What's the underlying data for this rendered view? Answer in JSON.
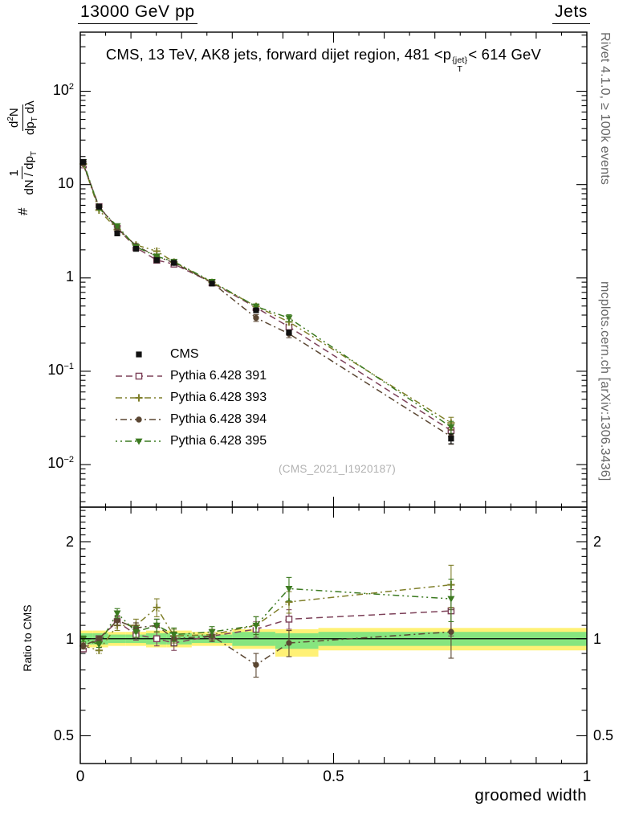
{
  "header": {
    "left": "13000 GeV pp",
    "right": "Jets"
  },
  "title": {
    "prefix": "CMS, 13 TeV, AK8 jets, forward dijet region, 481 <p",
    "pt_sup": "{jet}",
    "pt_sub": "T",
    "suffix": "< 614 GeV"
  },
  "right_margin": {
    "rivet": "Rivet 4.1.0, ≥ 100k events",
    "mcplots": "mcplots.cern.ch [arXiv:1306.3436]"
  },
  "main_panel": {
    "watermark": "(CMS_2021_I1920187)",
    "ylabel": {
      "prefix": "#",
      "frac1_num": "1",
      "frac1_den_main": "dN / dp",
      "frac1_den_sub": "T",
      "frac2_num_main": "d",
      "frac2_num_sup": "2",
      "frac2_num_tail": "N",
      "frac2_den_main": "dp",
      "frac2_den_sub": "T",
      "frac2_den_tail": " dλ"
    }
  },
  "ratio_panel": {
    "ylabel": "Ratio to CMS"
  },
  "x_axis": {
    "label": "groomed width"
  },
  "chart_data": {
    "type": "line",
    "title": "CMS, 13 TeV, AK8 jets, forward dijet region, 481 < pT(jet) < 614 GeV",
    "xlabel": "groomed width",
    "ylabel_main": "1/(dN/dpT) d2N/(dpT dλ)",
    "ylabel_ratio": "Ratio to CMS",
    "x_lim": [
      0,
      1
    ],
    "y_scale": "log",
    "y_lim_main": [
      0.0035,
      430
    ],
    "y_lim_ratio": [
      0.41,
      2.56
    ],
    "x_ticks_labeled": [
      0,
      0.5,
      1
    ],
    "x_tick_labels": [
      "0",
      "0.5",
      "1"
    ],
    "y_ticks_main": [
      {
        "v": 100,
        "base": "10",
        "exp": "2"
      },
      {
        "v": 10,
        "base": "10",
        "exp": ""
      },
      {
        "v": 1,
        "base": "1",
        "exp": ""
      },
      {
        "v": 0.1,
        "base": "10",
        "exp": "−1"
      },
      {
        "v": 0.01,
        "base": "10",
        "exp": "−2"
      }
    ],
    "y_ticks_ratio": [
      {
        "v": 2,
        "label": "2"
      },
      {
        "v": 1,
        "label": "1"
      },
      {
        "v": 0.5,
        "label": "0.5"
      }
    ],
    "x": [
      0.006,
      0.037,
      0.073,
      0.11,
      0.151,
      0.185,
      0.26,
      0.347,
      0.412,
      0.732
    ],
    "cms": {
      "name": "CMS",
      "color": "#111111",
      "marker": "square-filled",
      "values": [
        17.5,
        5.8,
        3.0,
        2.05,
        1.55,
        1.45,
        0.87,
        0.45,
        0.26,
        0.019
      ],
      "err_rel": [
        0.02,
        0.02,
        0.02,
        0.03,
        0.03,
        0.03,
        0.03,
        0.05,
        0.06,
        0.12
      ]
    },
    "models": [
      {
        "name": "Pythia 6.428 391",
        "color": "#7d4159",
        "marker": "square-open",
        "dash": "8 5",
        "ratio": [
          0.93,
          1.0,
          1.13,
          1.03,
          1.0,
          0.97,
          1.02,
          1.07,
          1.15,
          1.22
        ],
        "err": [
          0.02,
          0.02,
          0.04,
          0.04,
          0.05,
          0.05,
          0.04,
          0.06,
          0.08,
          0.2
        ]
      },
      {
        "name": "Pythia 6.428 393",
        "color": "#7f7f2a",
        "marker": "cross-open",
        "dash": "8 4 2 4",
        "ratio": [
          0.95,
          0.92,
          1.1,
          1.1,
          1.25,
          1.02,
          1.03,
          1.1,
          1.3,
          1.47
        ],
        "err": [
          0.02,
          0.02,
          0.04,
          0.05,
          0.08,
          0.05,
          0.04,
          0.07,
          0.1,
          0.22
        ]
      },
      {
        "name": "Pythia 6.428 394",
        "color": "#5a4632",
        "marker": "circle-filled",
        "dash": "2 4 8 4",
        "ratio": [
          0.95,
          1.0,
          1.14,
          1.08,
          1.1,
          1.0,
          1.02,
          0.83,
          0.97,
          1.05
        ],
        "err": [
          0.02,
          0.02,
          0.04,
          0.04,
          0.05,
          0.05,
          0.04,
          0.07,
          0.09,
          0.18
        ]
      },
      {
        "name": "Pythia 6.428 395",
        "color": "#3c7a20",
        "marker": "triangle-down-filled",
        "dash": "2 4 2 4 8 4",
        "ratio": [
          1.0,
          0.96,
          1.2,
          1.05,
          1.1,
          1.03,
          1.05,
          1.1,
          1.43,
          1.33
        ],
        "err": [
          0.02,
          0.02,
          0.04,
          0.04,
          0.05,
          0.05,
          0.04,
          0.07,
          0.12,
          0.2
        ]
      }
    ],
    "bands": {
      "edges": [
        0,
        0.025,
        0.055,
        0.09,
        0.13,
        0.17,
        0.22,
        0.3,
        0.385,
        0.47,
        1.0
      ],
      "yellow": [
        [
          0.94,
          1.06
        ],
        [
          0.94,
          1.06
        ],
        [
          0.95,
          1.05
        ],
        [
          0.95,
          1.05
        ],
        [
          0.94,
          1.06
        ],
        [
          0.94,
          1.06
        ],
        [
          0.95,
          1.05
        ],
        [
          0.93,
          1.07
        ],
        [
          0.88,
          1.07
        ],
        [
          0.92,
          1.08
        ]
      ],
      "green": [
        [
          0.96,
          1.04
        ],
        [
          0.96,
          1.04
        ],
        [
          0.97,
          1.03
        ],
        [
          0.97,
          1.03
        ],
        [
          0.96,
          1.04
        ],
        [
          0.96,
          1.04
        ],
        [
          0.97,
          1.03
        ],
        [
          0.95,
          1.05
        ],
        [
          0.93,
          1.04
        ],
        [
          0.95,
          1.05
        ]
      ],
      "yellow_color": "#fff176",
      "green_color": "#86e57f"
    }
  }
}
